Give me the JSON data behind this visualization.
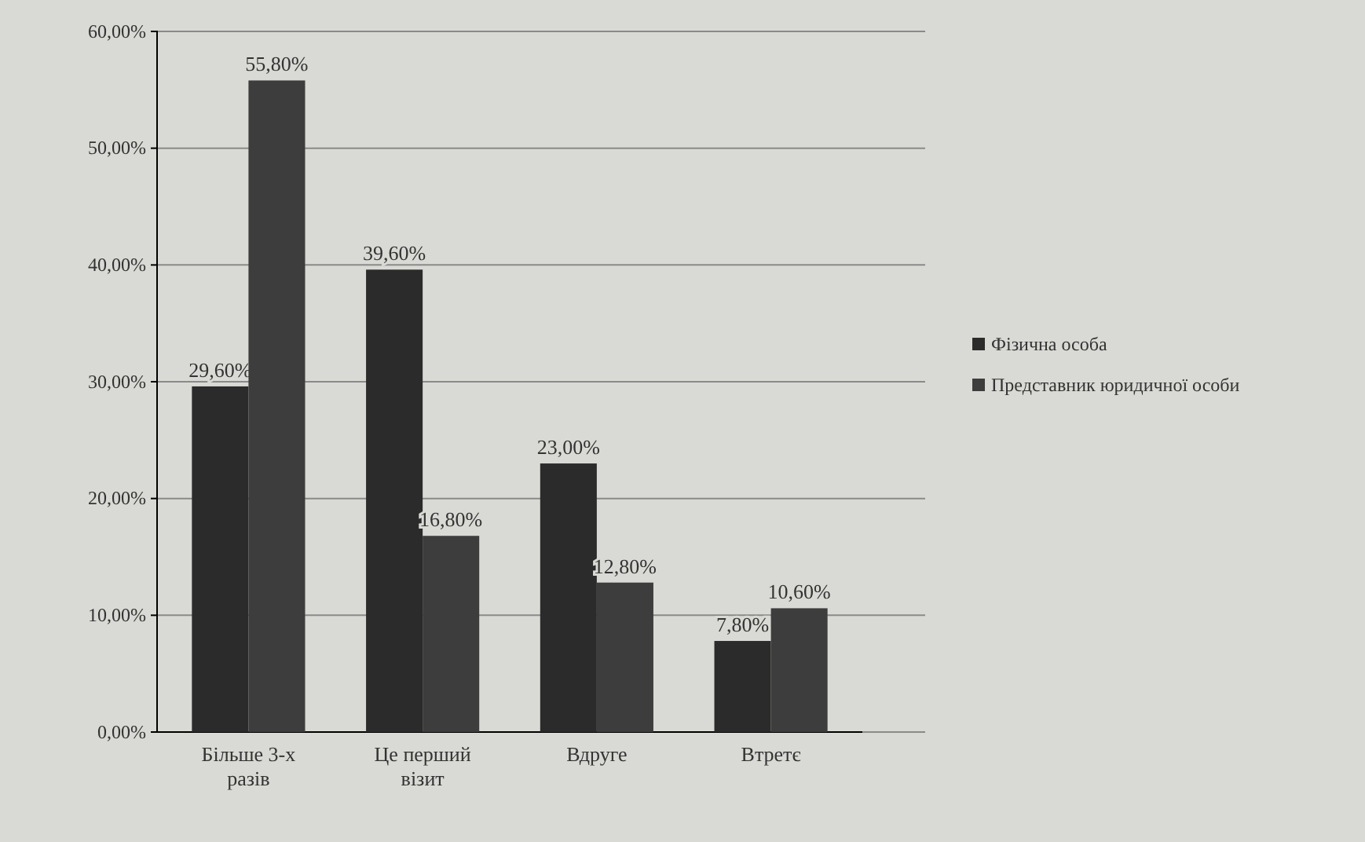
{
  "chart_data": {
    "type": "bar",
    "categories": [
      "Більше 3-х разів",
      "Це перший візит",
      "Вдруге",
      "Втретє"
    ],
    "series": [
      {
        "name": "Фізична особа",
        "color": "#2b2b2b",
        "values": [
          29.6,
          39.6,
          23.0,
          7.8
        ]
      },
      {
        "name": "Представник юридичної особи",
        "color": "#3d3d3d",
        "values": [
          55.8,
          16.8,
          12.8,
          10.6
        ]
      }
    ],
    "value_labels": [
      [
        "29,60%",
        "39,60%",
        "23,00%",
        "7,80%"
      ],
      [
        "55,80%",
        "16,80%",
        "12,80%",
        "10,60%"
      ]
    ],
    "ylim": [
      0,
      60
    ],
    "yticks": [
      {
        "value": 0,
        "label": "0,00%"
      },
      {
        "value": 10,
        "label": "10,00%"
      },
      {
        "value": 20,
        "label": "20,00%"
      },
      {
        "value": 30,
        "label": "30,00%"
      },
      {
        "value": 40,
        "label": "40,00%"
      },
      {
        "value": 50,
        "label": "50,00%"
      },
      {
        "value": 60,
        "label": "60,00%"
      }
    ],
    "grid": "y",
    "legend": "right"
  }
}
